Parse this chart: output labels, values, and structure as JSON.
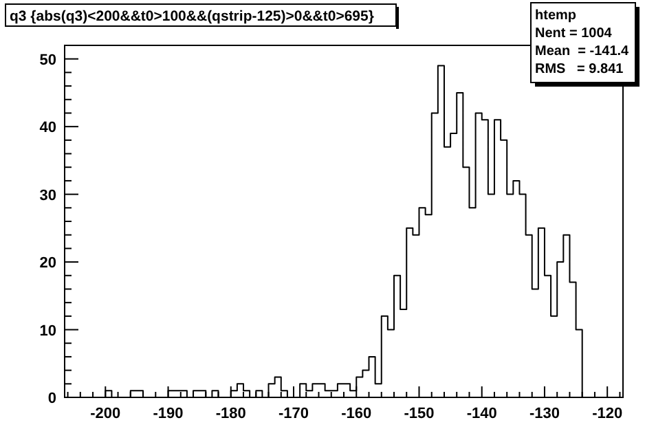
{
  "chart_data": {
    "type": "histogram",
    "title": "q3 {abs(q3)<200&&t0>100&&(qstrip-125)>0&&t0>695}",
    "annotations": [
      "htemp",
      "Nent = 1004",
      "Mean  = -141.4",
      "RMS   = 9.841"
    ],
    "color": "#000000",
    "bins": [
      -200,
      -199,
      -198,
      -197,
      -196,
      -195,
      -194,
      -193,
      -192,
      -191,
      -190,
      -189,
      -188,
      -187,
      -186,
      -185,
      -184,
      -183,
      -182,
      -181,
      -180,
      -179,
      -178,
      -177,
      -176,
      -175,
      -174,
      -173,
      -172,
      -171,
      -170,
      -169,
      -168,
      -167,
      -166,
      -165,
      -164,
      -163,
      -162,
      -161,
      -160,
      -159,
      -158,
      -157,
      -156,
      -155,
      -154,
      -153,
      -152,
      -151,
      -150,
      -149,
      -148,
      -147,
      -146,
      -145,
      -144,
      -143,
      -142,
      -141,
      -140,
      -139,
      -138,
      -137,
      -136,
      -135,
      -134,
      -133,
      -132,
      -131,
      -130,
      -129,
      -128,
      -127,
      -126,
      -125,
      -124
    ],
    "values": [
      1,
      0,
      0,
      0,
      1,
      1,
      0,
      0,
      0,
      0,
      1,
      1,
      1,
      0,
      1,
      1,
      0,
      1,
      0,
      0,
      1,
      2,
      1,
      0,
      1,
      0,
      2,
      3,
      1,
      0,
      0,
      2,
      1,
      2,
      2,
      1,
      1,
      2,
      2,
      1,
      3,
      4,
      6,
      2,
      12,
      10,
      18,
      13,
      25,
      24,
      28,
      27,
      42,
      49,
      37,
      39,
      45,
      34,
      28,
      42,
      41,
      30,
      41,
      38,
      30,
      32,
      30,
      24,
      16,
      25,
      18,
      12,
      20,
      24,
      17,
      10
    ],
    "xlim": [
      -206.5,
      -117.5
    ],
    "ylim": [
      0,
      52
    ],
    "xticks": [
      {
        "value": -206,
        "label": null
      },
      {
        "value": -204,
        "label": null
      },
      {
        "value": -202,
        "label": null
      },
      -200,
      {
        "value": -198,
        "label": null
      },
      {
        "value": -196,
        "label": null
      },
      {
        "value": -194,
        "label": null
      },
      {
        "value": -192,
        "label": null
      },
      -190,
      {
        "value": -188,
        "label": null
      },
      {
        "value": -186,
        "label": null
      },
      {
        "value": -184,
        "label": null
      },
      {
        "value": -182,
        "label": null
      },
      -180,
      {
        "value": -178,
        "label": null
      },
      {
        "value": -176,
        "label": null
      },
      {
        "value": -174,
        "label": null
      },
      {
        "value": -172,
        "label": null
      },
      -170,
      {
        "value": -168,
        "label": null
      },
      {
        "value": -166,
        "label": null
      },
      {
        "value": -164,
        "label": null
      },
      {
        "value": -162,
        "label": null
      },
      -160,
      {
        "value": -158,
        "label": null
      },
      {
        "value": -156,
        "label": null
      },
      {
        "value": -154,
        "label": null
      },
      {
        "value": -152,
        "label": null
      },
      -150,
      {
        "value": -148,
        "label": null
      },
      {
        "value": -146,
        "label": null
      },
      {
        "value": -144,
        "label": null
      },
      {
        "value": -142,
        "label": null
      },
      -140,
      {
        "value": -138,
        "label": null
      },
      {
        "value": -136,
        "label": null
      },
      {
        "value": -134,
        "label": null
      },
      {
        "value": -132,
        "label": null
      },
      -130,
      {
        "value": -128,
        "label": null
      },
      {
        "value": -126,
        "label": null
      },
      {
        "value": -124,
        "label": null
      },
      {
        "value": -122,
        "label": null
      },
      -120,
      {
        "value": -118,
        "label": null
      }
    ],
    "yticks": [
      0,
      {
        "value": 2,
        "label": null
      },
      {
        "value": 4,
        "label": null
      },
      {
        "value": 6,
        "label": null
      },
      {
        "value": 8,
        "label": null
      },
      10,
      {
        "value": 12,
        "label": null
      },
      {
        "value": 14,
        "label": null
      },
      {
        "value": 16,
        "label": null
      },
      {
        "value": 18,
        "label": null
      },
      20,
      {
        "value": 22,
        "label": null
      },
      {
        "value": 24,
        "label": null
      },
      {
        "value": 26,
        "label": null
      },
      {
        "value": 28,
        "label": null
      },
      30,
      {
        "value": 32,
        "label": null
      },
      {
        "value": 34,
        "label": null
      },
      {
        "value": 36,
        "label": null
      },
      {
        "value": 38,
        "label": null
      },
      40,
      {
        "value": 42,
        "label": null
      },
      {
        "value": 44,
        "label": null
      },
      {
        "value": 46,
        "label": null
      },
      {
        "value": 48,
        "label": null
      },
      50,
      {
        "value": 52,
        "label": null
      }
    ]
  }
}
